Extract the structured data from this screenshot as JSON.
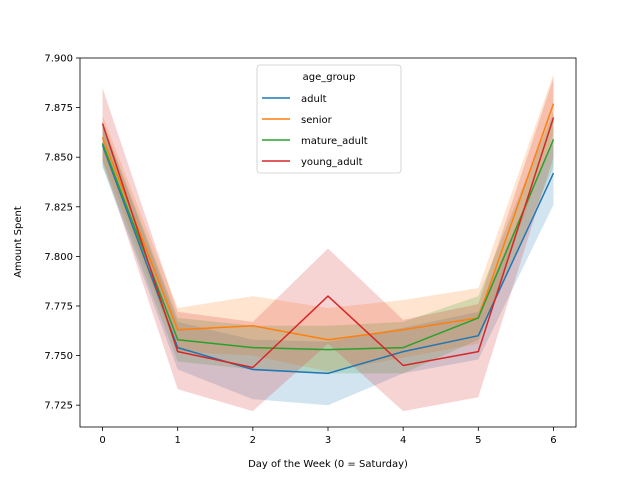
{
  "chart_data": {
    "type": "line",
    "xlabel": "Day of the Week (0 = Saturday)",
    "ylabel": "Amount Spent",
    "x": [
      0,
      1,
      2,
      3,
      4,
      5,
      6
    ],
    "xlim": [
      -0.3,
      6.3
    ],
    "ylim": [
      7.714,
      7.9
    ],
    "xticks": [
      0,
      1,
      2,
      3,
      4,
      5,
      6
    ],
    "yticks": [
      "7.725",
      "7.750",
      "7.775",
      "7.800",
      "7.825",
      "7.850",
      "7.875",
      "7.900"
    ],
    "grid": false,
    "legend_title": "age_group",
    "legend_position": "upper-center",
    "series": [
      {
        "name": "adult",
        "color": "#1f77b4",
        "values": [
          7.856,
          7.754,
          7.743,
          7.741,
          7.752,
          7.76,
          7.842
        ],
        "ci_low": [
          7.845,
          7.743,
          7.728,
          7.725,
          7.741,
          7.748,
          7.826
        ],
        "ci_high": [
          7.867,
          7.767,
          7.758,
          7.757,
          7.764,
          7.772,
          7.858
        ]
      },
      {
        "name": "senior",
        "color": "#ff7f0e",
        "values": [
          7.86,
          7.763,
          7.765,
          7.758,
          7.763,
          7.769,
          7.877
        ],
        "ci_low": [
          7.849,
          7.752,
          7.75,
          7.742,
          7.749,
          7.756,
          7.862
        ],
        "ci_high": [
          7.871,
          7.774,
          7.78,
          7.774,
          7.778,
          7.784,
          7.892
        ]
      },
      {
        "name": "mature_adult",
        "color": "#2ca02c",
        "values": [
          7.857,
          7.758,
          7.754,
          7.753,
          7.754,
          7.769,
          7.859
        ],
        "ci_low": [
          7.846,
          7.747,
          7.743,
          7.741,
          7.741,
          7.758,
          7.845
        ],
        "ci_high": [
          7.868,
          7.769,
          7.765,
          7.765,
          7.767,
          7.78,
          7.873
        ]
      },
      {
        "name": "young_adult",
        "color": "#d62728",
        "values": [
          7.867,
          7.752,
          7.744,
          7.78,
          7.745,
          7.752,
          7.87
        ],
        "ci_low": [
          7.848,
          7.733,
          7.722,
          7.756,
          7.722,
          7.729,
          7.85
        ],
        "ci_high": [
          7.885,
          7.772,
          7.767,
          7.804,
          7.768,
          7.776,
          7.89
        ]
      }
    ]
  }
}
